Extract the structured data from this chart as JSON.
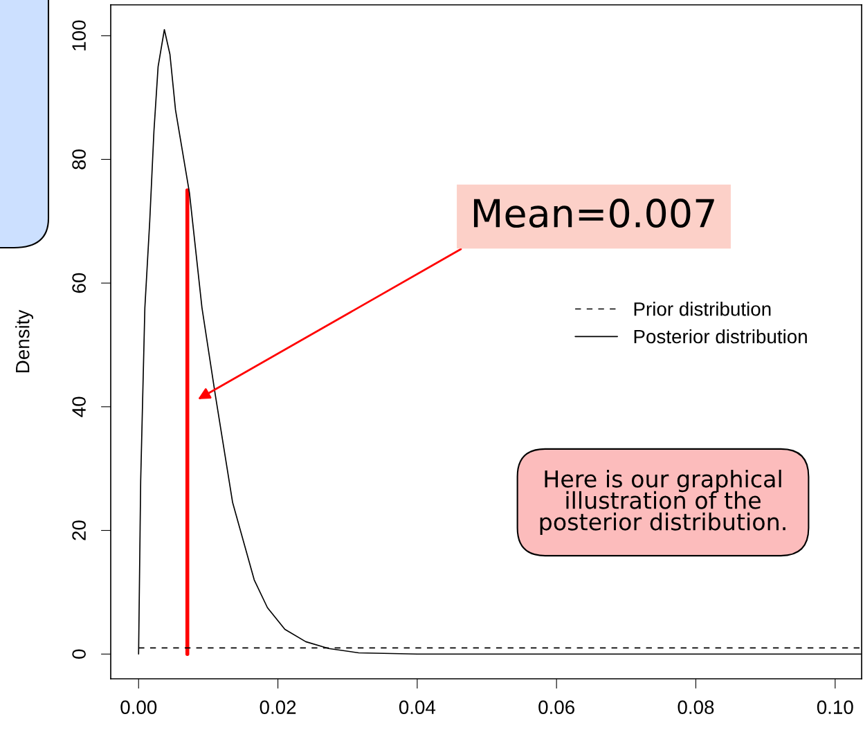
{
  "chart_data": {
    "type": "line",
    "ylabel": "Density",
    "xlim": [
      -0.004,
      0.1038
    ],
    "ylim": [
      -4,
      105
    ],
    "xticks": [
      {
        "value": 0,
        "label": "0.00"
      },
      {
        "value": 0.02,
        "label": "0.02"
      },
      {
        "value": 0.04,
        "label": "0.04"
      },
      {
        "value": 0.06,
        "label": "0.06"
      },
      {
        "value": 0.08,
        "label": "0.08"
      },
      {
        "value": 0.1,
        "label": "0.10"
      }
    ],
    "yticks": [
      0,
      20,
      40,
      60,
      80,
      100
    ],
    "grid": false,
    "legend": "right",
    "series": [
      {
        "name": "Prior distribution",
        "color": "#000000",
        "line_style": "dashed",
        "x": [
          0,
          0.1038
        ],
        "values": [
          1,
          1
        ]
      },
      {
        "name": "Posterior distribution",
        "color": "#000000",
        "line_style": "solid",
        "x": [
          0,
          0.0003,
          0.0009,
          0.0016,
          0.0022,
          0.0028,
          0.0037,
          0.0045,
          0.0053,
          0.0073,
          0.0091,
          0.011,
          0.0135,
          0.0166,
          0.0185,
          0.021,
          0.024,
          0.0273,
          0.0316,
          0.04,
          0.06,
          0.08,
          0.1038
        ],
        "values": [
          0,
          28,
          56,
          70,
          84.5,
          95,
          101,
          97,
          88,
          74.6,
          56,
          42,
          24.5,
          12,
          7.5,
          4,
          2,
          0.9,
          0.2,
          0,
          0,
          0,
          0
        ]
      },
      {
        "color": "#ff0000",
        "line_style": "solid",
        "x": [
          0.007,
          0.007
        ],
        "values": [
          0,
          75
        ]
      }
    ],
    "annotations": [
      "Mean=0.007",
      "Here is our graphical illustration of the posterior distribution."
    ]
  }
}
